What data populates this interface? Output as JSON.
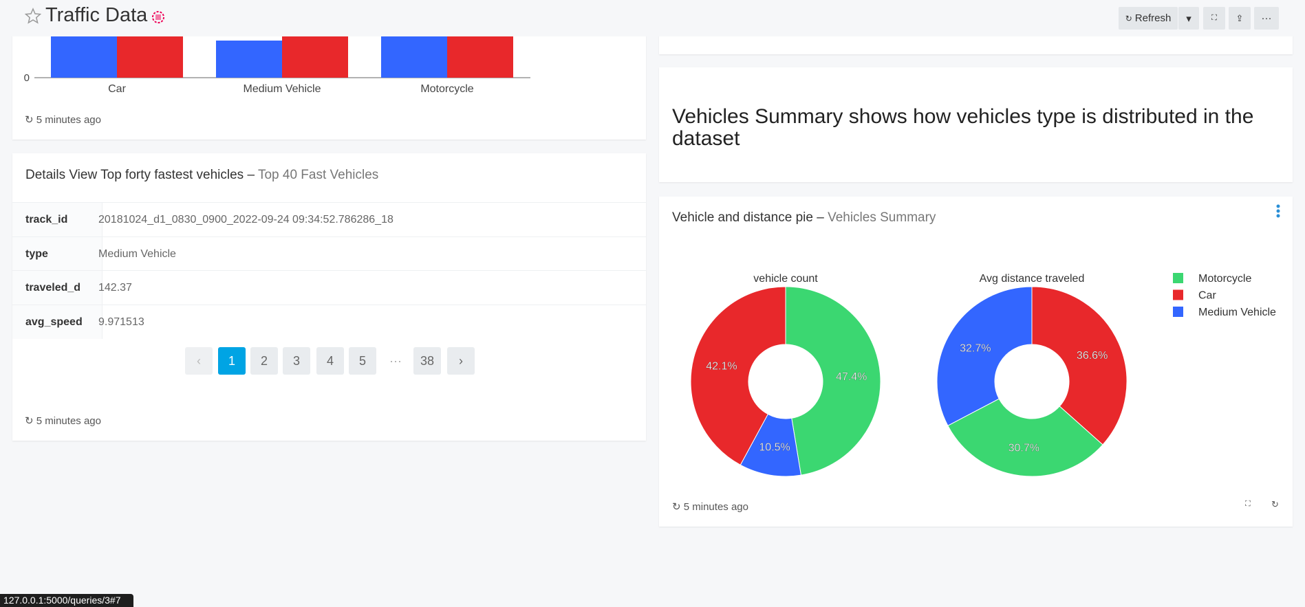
{
  "header": {
    "title": "Traffic Data",
    "refresh": "Refresh"
  },
  "bar_widget": {
    "categories": [
      "Car",
      "Medium Vehicle",
      "Motorcycle"
    ],
    "yticks": [
      0
    ],
    "updated": "5 minutes ago"
  },
  "table_widget": {
    "title": "Details View Top forty fastest vehicles",
    "separator": "–",
    "subtitle": "Top 40 Fast Vehicles",
    "rows": [
      [
        "track_id",
        "20181024_d1_0830_0900_2022-09-24 09:34:52.786286_18"
      ],
      [
        "type",
        "Medium Vehicle"
      ],
      [
        "traveled_d",
        "142.37"
      ],
      [
        "avg_speed",
        "9.971513"
      ]
    ],
    "pages": [
      1,
      2,
      3,
      4,
      5,
      38
    ],
    "current_page": 1,
    "updated": "5 minutes ago"
  },
  "text_widget": {
    "text": "Vehicles Summary shows how vehicles type is distributed in the dataset"
  },
  "pie_widget": {
    "title": "Vehicle and distance pie",
    "separator": "–",
    "subtitle": "Vehicles Summary",
    "updated": "5 minutes ago",
    "charts": [
      {
        "type": "pie",
        "title": "vehicle count",
        "categories": [
          "Motorcycle",
          "Medium Vehicle",
          "Car"
        ],
        "values": [
          47.4,
          10.5,
          42.1
        ],
        "value_labels": [
          "47.4%",
          "10.5%",
          "42.1%"
        ],
        "colors": [
          "#3bd771",
          "#3366ff",
          "#e8282b"
        ]
      },
      {
        "type": "pie",
        "title": "Avg distance traveled",
        "categories": [
          "Car",
          "Motorcycle",
          "Medium Vehicle"
        ],
        "values": [
          36.6,
          30.7,
          32.7
        ],
        "value_labels": [
          "36.6%",
          "30.7%",
          "32.7%"
        ],
        "colors": [
          "#e8282b",
          "#3bd771",
          "#3366ff"
        ]
      }
    ],
    "legend": [
      {
        "name": "Motorcycle",
        "color": "#3bd771"
      },
      {
        "name": "Car",
        "color": "#e8282b"
      },
      {
        "name": "Medium Vehicle",
        "color": "#3366ff"
      }
    ]
  },
  "status_url": "127.0.0.1:5000/queries/3#7"
}
